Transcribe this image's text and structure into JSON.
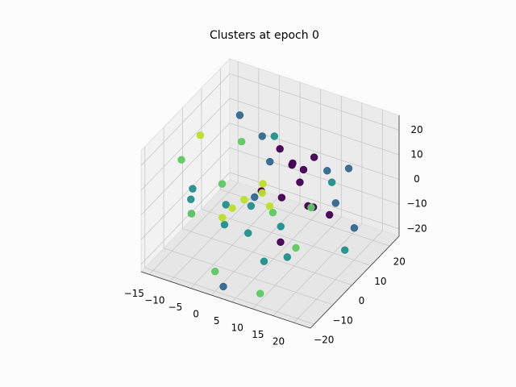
{
  "chart_data": {
    "type": "scatter3d",
    "title": "Clusters at epoch 0",
    "xlim": [
      -17,
      24
    ],
    "ylim": [
      -22,
      25
    ],
    "zlim": [
      -23,
      26
    ],
    "xticks": [
      {
        "value": -15,
        "label": "−15"
      },
      {
        "value": -10,
        "label": "−10"
      },
      {
        "value": -5,
        "label": "−5"
      },
      0,
      5,
      10,
      15,
      20
    ],
    "yticks": [
      {
        "value": -20,
        "label": "−20"
      },
      {
        "value": -10,
        "label": "−10"
      },
      0,
      10,
      20
    ],
    "zticks": [
      {
        "value": -20,
        "label": "−20"
      },
      {
        "value": -10,
        "label": "−10"
      },
      0,
      10,
      20
    ],
    "grid": true,
    "series": [
      {
        "color": "#440154",
        "x": [
          2,
          4,
          6,
          8,
          10,
          12,
          3,
          5,
          14,
          9,
          7,
          11
        ],
        "y": [
          10,
          12,
          8,
          15,
          5,
          3,
          -2,
          14,
          10,
          -5,
          0,
          8
        ],
        "z": [
          12,
          5,
          10,
          8,
          12,
          0,
          5,
          -3,
          -8,
          -10,
          3,
          -5
        ]
      },
      {
        "color": "#31688e",
        "x": [
          -10,
          -5,
          0,
          5,
          10,
          15,
          -8,
          20,
          18,
          2
        ],
        "y": [
          15,
          20,
          5,
          -10,
          22,
          18,
          -15,
          10,
          0,
          -20
        ],
        "z": [
          15,
          -5,
          20,
          10,
          -15,
          5,
          0,
          -10,
          20,
          -20
        ]
      },
      {
        "color": "#21918c",
        "x": [
          -15,
          -10,
          -5,
          0,
          5,
          10,
          15,
          -12,
          8,
          20,
          -3,
          12
        ],
        "y": [
          0,
          -10,
          10,
          -15,
          -5,
          20,
          -18,
          12,
          -20,
          5,
          18,
          -8
        ],
        "z": [
          -10,
          5,
          -15,
          0,
          -20,
          -5,
          10,
          -20,
          5,
          -15,
          8,
          -12
        ]
      },
      {
        "color": "#5ec962",
        "x": [
          -15,
          -12,
          -8,
          0,
          5,
          -5,
          10,
          15,
          -2
        ],
        "y": [
          -5,
          10,
          -15,
          -20,
          20,
          5,
          -18,
          -10,
          15
        ],
        "z": [
          10,
          -10,
          0,
          -15,
          -18,
          15,
          -20,
          -5,
          -20
        ]
      },
      {
        "color": "#bddf26",
        "x": [
          -5,
          -3,
          -6,
          0,
          2,
          -15,
          5
        ],
        "y": [
          0,
          2,
          -3,
          5,
          1,
          5,
          -2
        ],
        "z": [
          -8,
          -5,
          -10,
          -3,
          5,
          12,
          0
        ]
      }
    ]
  }
}
